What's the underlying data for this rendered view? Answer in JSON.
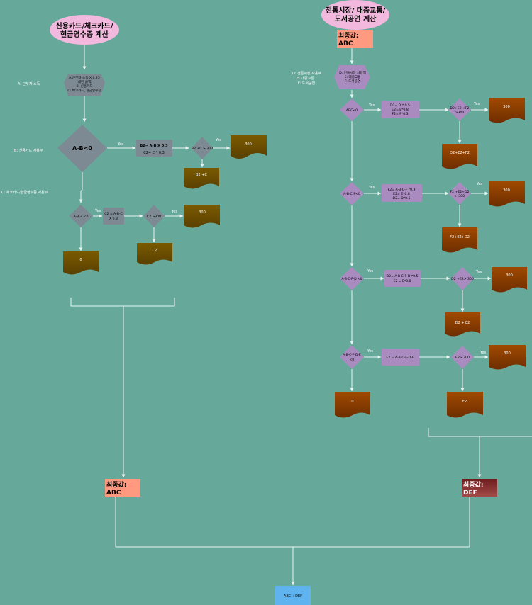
{
  "left": {
    "title": [
      "신용카드/체크카드/",
      "현금영수증 계산"
    ],
    "legend_a": "A: 근무자 소득",
    "legend_b": "B: 신용카드 사용부",
    "legend_c": "C: 체크카드/현금영수증 사용부",
    "hex": [
      "A:근무자 소득 X 0.25",
      "(세전 금액)",
      "B: 신용카드",
      "C: 체크카드, 현금영수증"
    ],
    "d1": "A-B<0",
    "yes1": "Yes",
    "calc1": [
      "B2= A-B X 0.3",
      "C2= C * 0.3"
    ],
    "d2": "B2 +C > 300",
    "yes2": "Yes",
    "out300a": "300",
    "outB2C": "B2 +C",
    "d3": "A-B -C<0",
    "yes3": "Yes",
    "calc2": [
      "C2 = A-B-C",
      "X 0.3"
    ],
    "d4": "C2 >300",
    "yes4": "Yes",
    "out300b": "300",
    "out0": "0",
    "outC2": "C2",
    "final_label": "최종값:",
    "final_value": "ABC"
  },
  "right": {
    "title": [
      "전통시장/ 대중교통/",
      "도서공연 계산"
    ],
    "top_label": "최종값:",
    "top_value": "ABC",
    "legend": [
      "D: 전통시장 사용액",
      "E: 대중교통",
      "F: 도서공연"
    ],
    "hex": [
      "D: 전통시장 사용액",
      "E: 대중교통",
      "F: 도서공연"
    ],
    "r1_dec": "ABC<0",
    "r1_yes": "Yes",
    "r1_calc": [
      "D2= D * 0.5",
      "E2= E*0.8",
      "F2= F*0.3"
    ],
    "r1_dec2": [
      "D2+E2 +F2",
      ">300"
    ],
    "r1_yes2": "Yes",
    "r1_out300": "300",
    "r1_out": "D2+E2+F2",
    "r2_dec": "A-B-C-F<0",
    "r2_yes": "Yes",
    "r2_calc": [
      "F2= A-B-C-F *0.3",
      "E2= E*0.8",
      "D2= D*0.5"
    ],
    "r2_dec2": [
      "F2 +E2+D2",
      "> 300"
    ],
    "r2_yes2": "Yes",
    "r2_out300": "300",
    "r2_out": "F2+E2+D2",
    "r3_dec": "A-B-C-F-D <0",
    "r3_yes": "Yes",
    "r3_calc": [
      "D2= A-B-C-F-D *0.5",
      "E2 = E*0.8"
    ],
    "r3_dec2": "D2 +E2> 300",
    "r3_yes2": "Yes",
    "r3_out300": "300",
    "r3_out": "D2 + E2",
    "r4_dec": [
      "A-B-C-F-D-E",
      "<0"
    ],
    "r4_yes": "Yes",
    "r4_calc": "E2 = A-B-C-F-D-E",
    "r4_dec2": "E2> 300",
    "r4_yes2": "Yes",
    "r4_out300": "300",
    "r4_out0": "0",
    "r4_out": "E2",
    "final_label": "최종값:",
    "final_value": "DEF"
  },
  "bottom": {
    "sum": "ABC +DEF"
  },
  "colors": {
    "background": "#66a99b",
    "gray_shape": "#7d8a94",
    "doc_olive": "#6b4e00",
    "doc_brown": "#8b3f00",
    "purple": "#a98bbf",
    "pink": "#f2b8dd",
    "salmon": "#ff9a80",
    "maroon": "#8a2b2b",
    "blue": "#5fb4f0"
  }
}
